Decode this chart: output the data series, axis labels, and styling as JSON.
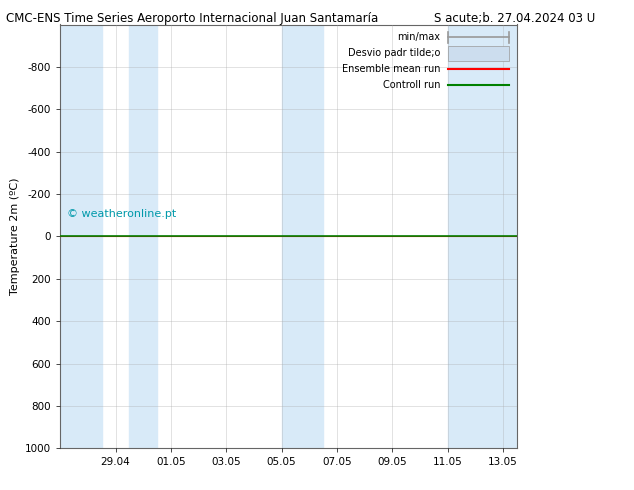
{
  "title_left": "CMC-ENS Time Series Aeroporto Internacional Juan Santamaría",
  "title_right": "S acute;b. 27.04.2024 03 U",
  "ylabel": "Temperature 2m (ºC)",
  "watermark": "© weatheronline.pt",
  "ylim_bottom": 1000,
  "ylim_top": -1000,
  "yticks": [
    -800,
    -600,
    -400,
    -200,
    0,
    200,
    400,
    600,
    800,
    1000
  ],
  "xtick_labels": [
    "29.04",
    "01.05",
    "03.05",
    "05.05",
    "07.05",
    "09.05",
    "11.05",
    "13.05"
  ],
  "xtick_positions": [
    2,
    4,
    6,
    8,
    10,
    12,
    14,
    16
  ],
  "xlim": [
    0,
    16.5
  ],
  "background_color": "#ffffff",
  "plot_bg_color": "#ffffff",
  "shaded_bands": [
    [
      0,
      1.5
    ],
    [
      2.5,
      3.5
    ],
    [
      8.0,
      9.5
    ],
    [
      14.0,
      16.5
    ]
  ],
  "shaded_color": "#d8eaf8",
  "grid_color": "#aaaaaa",
  "control_run_color": "#008000",
  "ensemble_mean_color": "#ff0000",
  "watermark_color": "#0099aa",
  "legend_minmax_color": "#999999",
  "legend_desvio_color": "#ccddee",
  "legend_texts": [
    "min/max",
    "Desvio padr tilde;o",
    "Ensemble mean run",
    "Controll run"
  ]
}
